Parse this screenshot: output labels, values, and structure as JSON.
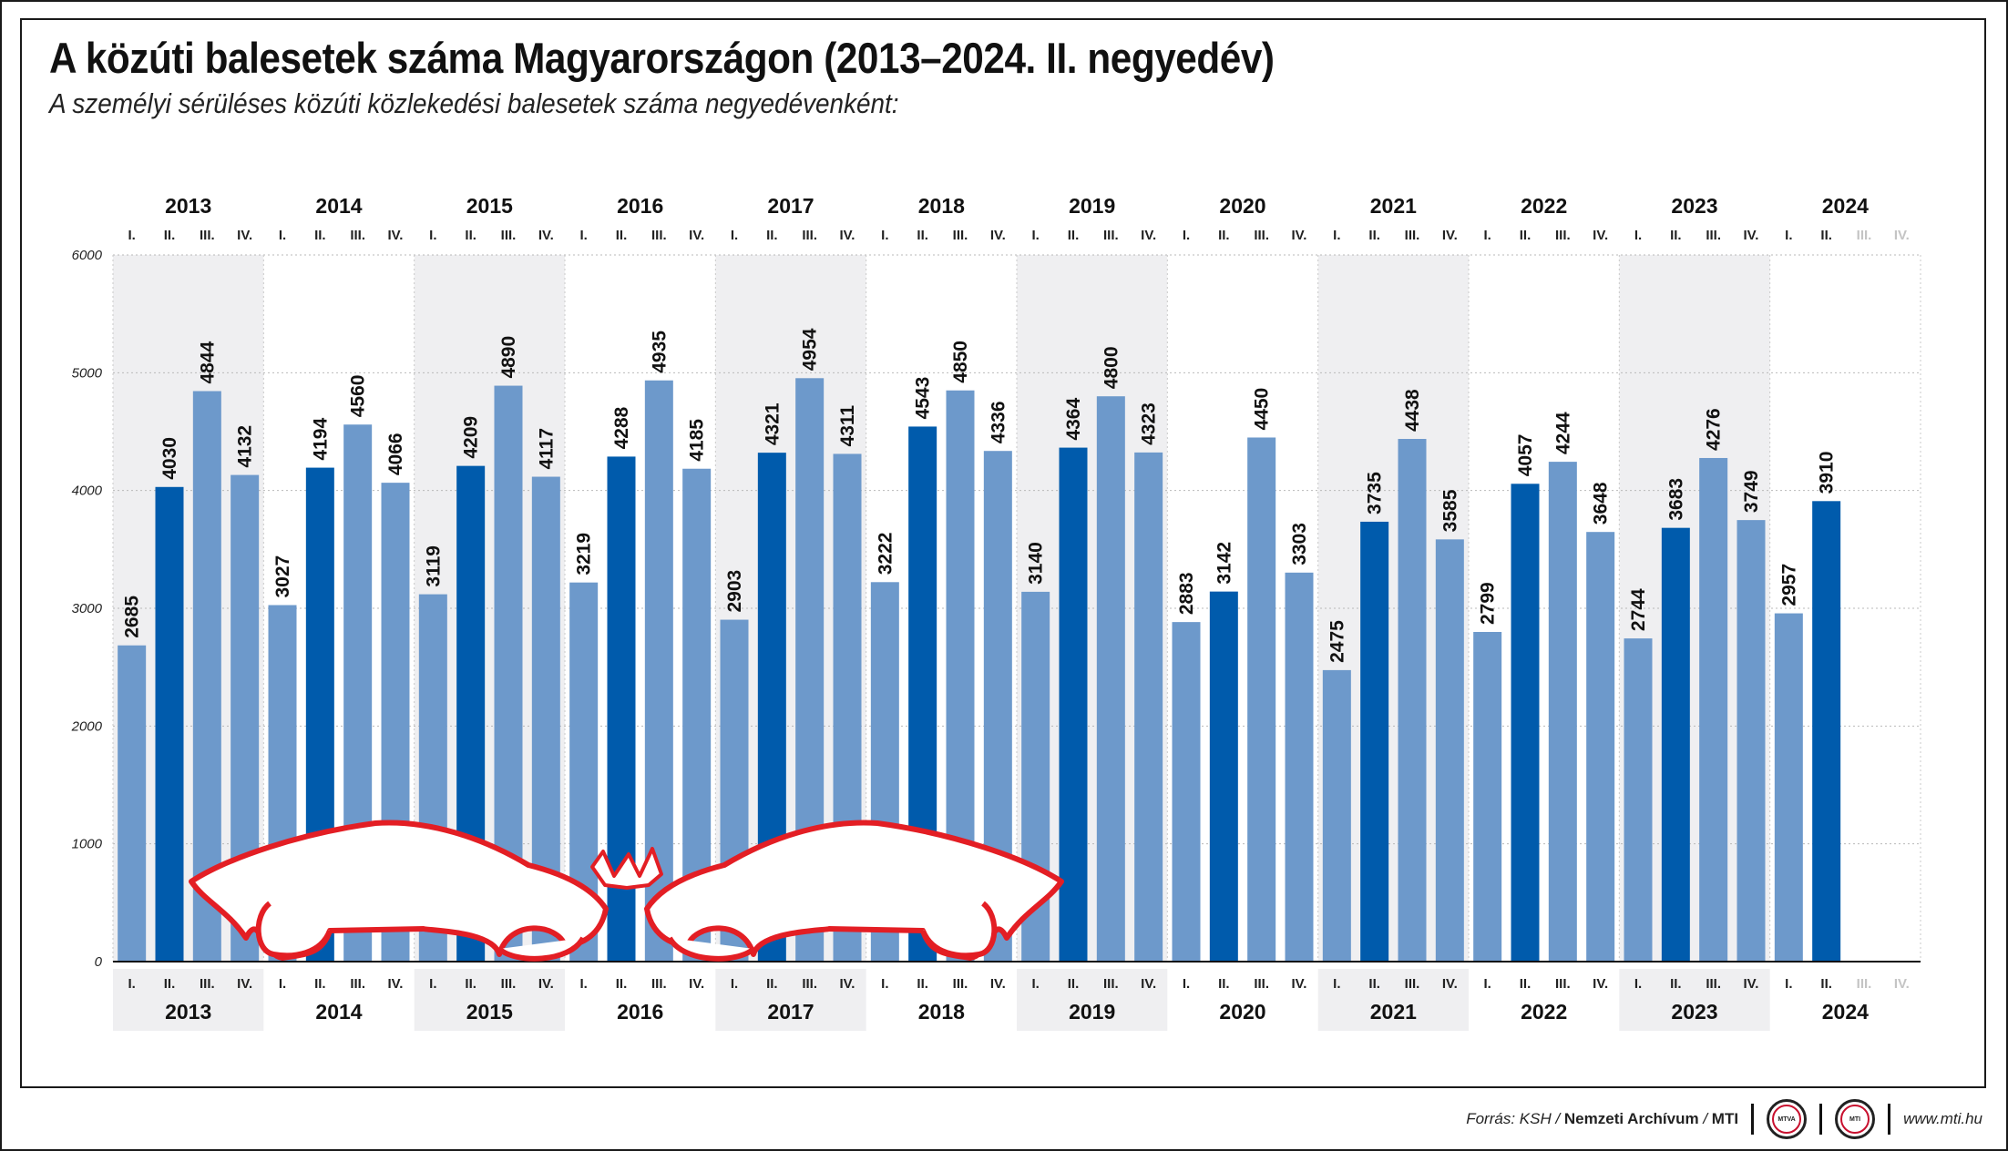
{
  "title": "A közúti balesetek száma Magyarországon (2013–2024. II. negyedév)",
  "subtitle": "A személyi sérüléses közúti közlekedési balesetek száma negyedévenként:",
  "footer": {
    "source_prefix": "Forrás: KSH /",
    "source_archive": "Nemzeti Archívum",
    "source_sep": "/",
    "source_mti": "MTI",
    "logo1_text": "MTVA",
    "logo2_text": "MTI",
    "url": "www.mti.hu"
  },
  "colors": {
    "q_other": "#6d99cb",
    "q_second": "#005bac",
    "shade": "#efeff1",
    "inactive_text": "#c4c4c4",
    "car_outline": "#e31e24"
  },
  "chart_data": {
    "type": "bar",
    "years": [
      "2013",
      "2014",
      "2015",
      "2016",
      "2017",
      "2018",
      "2019",
      "2020",
      "2021",
      "2022",
      "2023",
      "2024"
    ],
    "quarters": [
      "I.",
      "II.",
      "III.",
      "IV."
    ],
    "values": [
      [
        2685,
        4030,
        4844,
        4132
      ],
      [
        3027,
        4194,
        4560,
        4066
      ],
      [
        3119,
        4209,
        4890,
        4117
      ],
      [
        3219,
        4288,
        4935,
        4185
      ],
      [
        2903,
        4321,
        4954,
        4311
      ],
      [
        3222,
        4543,
        4850,
        4336
      ],
      [
        3140,
        4364,
        4800,
        4323
      ],
      [
        2883,
        3142,
        4450,
        3303
      ],
      [
        2475,
        3735,
        4438,
        3585
      ],
      [
        2799,
        4057,
        4244,
        3648
      ],
      [
        2744,
        3683,
        4276,
        3749
      ],
      [
        2957,
        3910,
        null,
        null
      ]
    ],
    "highlight_quarter": "II.",
    "yticks": [
      0,
      1000,
      2000,
      3000,
      4000,
      5000,
      6000
    ],
    "ylim": [
      0,
      6000
    ],
    "grid": true,
    "legend": "none"
  }
}
